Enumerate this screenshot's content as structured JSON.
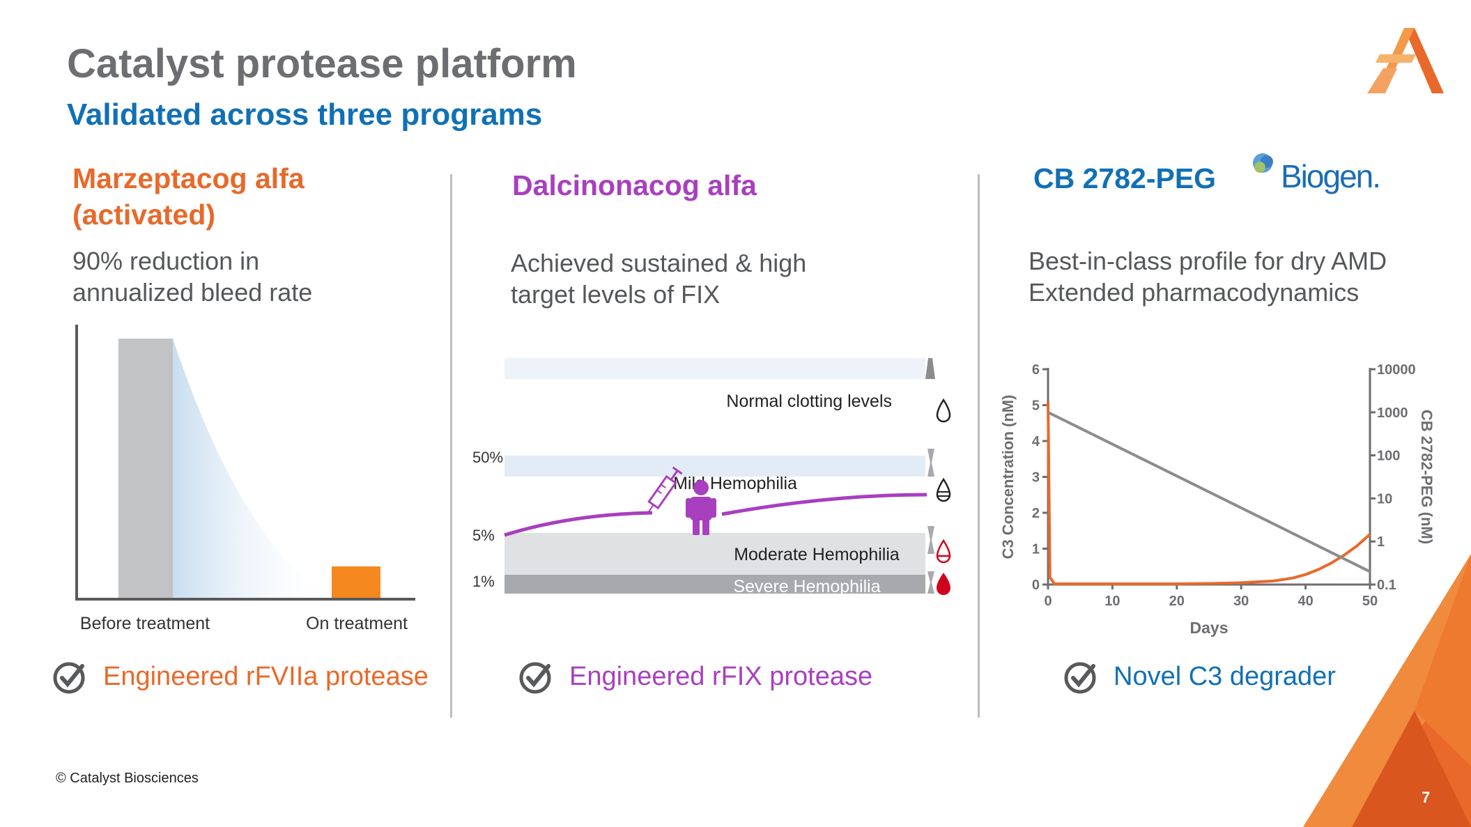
{
  "header": {
    "title": "Catalyst protease platform",
    "subtitle": "Validated across three programs"
  },
  "colors": {
    "gray_text": "#6d6e71",
    "blue": "#1170b5",
    "orange": "#e8692a",
    "purple": "#a83fbf",
    "bar_gray": "#c2c3c5",
    "bar_orange": "#f5881f"
  },
  "logo": {
    "name": "catalyst-logo"
  },
  "columns": [
    {
      "title": "Marzeptacog alfa (activated)",
      "description_lines": [
        "90% reduction in",
        "annualized bleed rate"
      ],
      "footer": "Engineered rFVIIa protease"
    },
    {
      "title": "Dalcinonacog alfa",
      "description_lines": [
        "Achieved sustained & high",
        "target levels of FIX"
      ],
      "footer": "Engineered rFIX protease"
    },
    {
      "title": "CB 2782-PEG",
      "partner_logo": "Biogen.",
      "description_lines": [
        "Best-in-class profile for dry AMD",
        "Extended pharmacodynamics"
      ],
      "footer": "Novel C3 degrader"
    }
  ],
  "chart_data": [
    {
      "type": "bar",
      "categories": [
        "Before treatment",
        "On treatment"
      ],
      "values": [
        100,
        10
      ],
      "title": "",
      "xlabel": "",
      "ylabel": "",
      "grid": false
    },
    {
      "type": "area",
      "title": "",
      "bands": [
        {
          "label": "Normal clotting levels",
          "icon": "drop-empty-icon"
        },
        {
          "label": "Mild Hemophilia",
          "icon": "drop-lined-icon"
        },
        {
          "label": "Moderate Hemophilia",
          "icon": "drop-half-icon"
        },
        {
          "label": "Severe Hemophilia",
          "icon": "drop-full-icon"
        }
      ],
      "y_ticks": [
        "50%",
        "5%",
        "1%"
      ],
      "icons": [
        "syringe-icon",
        "person-icon"
      ]
    },
    {
      "type": "line",
      "title": "",
      "xlabel": "Days",
      "ylabel": "C3 Concentration (nM)",
      "ylabel_right": "CB 2782-PEG (nM)",
      "x_ticks": [
        0,
        10,
        20,
        30,
        40,
        50
      ],
      "y_ticks": [
        0,
        1,
        2,
        3,
        4,
        5,
        6
      ],
      "y_right_ticks": [
        "10000",
        "1000",
        "100",
        "10",
        "1",
        "0.1"
      ],
      "xlim": [
        0,
        50
      ],
      "ylim": [
        0,
        6
      ],
      "ylim_right": [
        0.1,
        10000
      ],
      "y_right_scale": "log",
      "grid": false,
      "series": [
        {
          "axis": "left",
          "color": "#e8692a",
          "x": [
            0,
            0.3,
            1,
            5,
            10,
            15,
            20,
            25,
            30,
            35,
            38,
            40,
            42,
            44,
            46,
            48,
            50
          ],
          "y": [
            5.1,
            0.2,
            0.02,
            0.02,
            0.02,
            0.02,
            0.02,
            0.03,
            0.05,
            0.1,
            0.18,
            0.28,
            0.42,
            0.6,
            0.82,
            1.08,
            1.4
          ]
        },
        {
          "axis": "right",
          "color": "#8c8c8c",
          "x": [
            0,
            50
          ],
          "y": [
            1000,
            0.2
          ]
        }
      ]
    }
  ],
  "footer": {
    "copyright": "© Catalyst Biosciences",
    "page_number": "7"
  }
}
